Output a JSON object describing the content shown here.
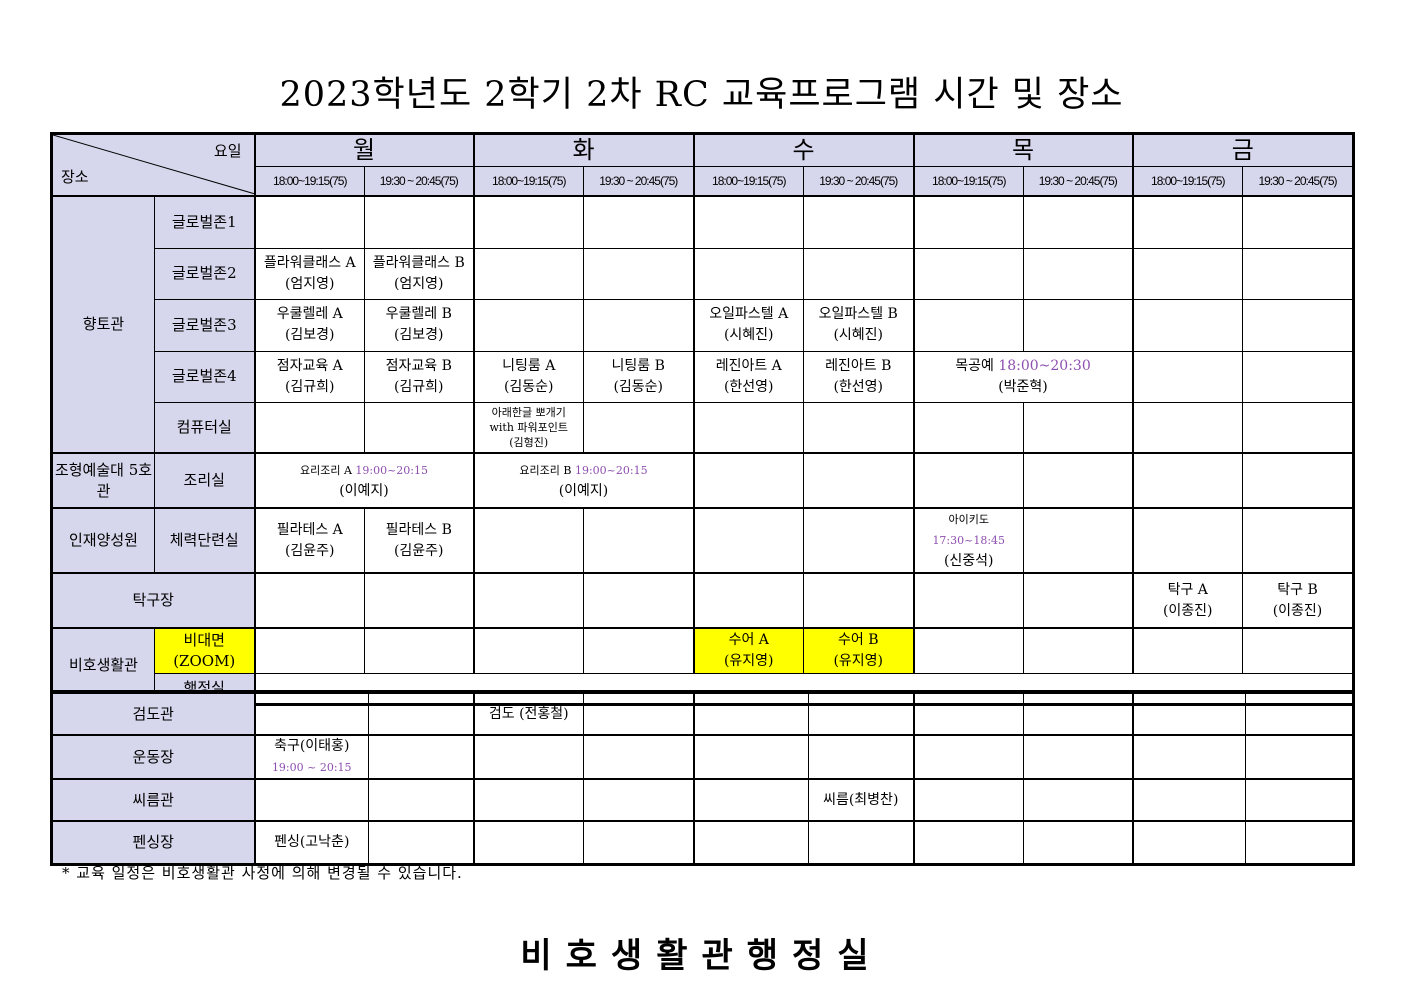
{
  "title": "2023학년도 2학기 2차 RC 교육프로그램 시간 및 장소",
  "header": {
    "day_label": "요일",
    "place_label": "장소",
    "days": [
      "월",
      "화",
      "수",
      "목",
      "금"
    ],
    "slots": [
      "18:00~19:15(75)",
      "19:30 ~ 20:45(75)"
    ]
  },
  "upper_rows": [
    {
      "group": "향토관",
      "group_rows": 5,
      "room": "글로벌존1",
      "slots": [
        null,
        null,
        null,
        null,
        null,
        null,
        null,
        null,
        null,
        null
      ]
    },
    {
      "room": "글로벌존2",
      "slots": [
        {
          "lines": [
            "플라워클래스 A",
            "(엄지영)"
          ]
        },
        {
          "lines": [
            "플라워클래스 B",
            "(엄지영)"
          ]
        },
        null,
        null,
        null,
        null,
        null,
        null,
        null,
        null
      ]
    },
    {
      "room": "글로벌존3",
      "slots": [
        {
          "lines": [
            "우쿨렐레 A",
            "(김보경)"
          ]
        },
        {
          "lines": [
            "우쿨렐레 B",
            "(김보경)"
          ]
        },
        null,
        null,
        {
          "lines": [
            "오일파스텔 A",
            "(시혜진)"
          ]
        },
        {
          "lines": [
            "오일파스텔 B",
            "(시혜진)"
          ]
        },
        null,
        null,
        null,
        null
      ]
    },
    {
      "room": "글로벌존4",
      "slots": [
        {
          "lines": [
            "점자교육 A",
            "(김규희)"
          ]
        },
        {
          "lines": [
            "점자교육 B",
            "(김규희)"
          ]
        },
        {
          "lines": [
            "니팅룸 A",
            "(김동순)"
          ]
        },
        {
          "lines": [
            "니팅룸 B",
            "(김동순)"
          ]
        },
        {
          "lines": [
            "레진아트 A",
            "(한선영)"
          ]
        },
        {
          "lines": [
            "레진아트 B",
            "(한선영)"
          ]
        },
        {
          "lines": [
            "목공예",
            "(박준혁)"
          ],
          "time": "18:00~20:30",
          "span": 2
        },
        null,
        null
      ]
    },
    {
      "room": "컴퓨터실",
      "slots": [
        null,
        null,
        {
          "lines": [
            "아래한글 뽀개기",
            "with 파워포인트",
            "(김형진)"
          ],
          "small": true
        },
        null,
        null,
        null,
        null,
        null,
        null,
        null
      ]
    },
    {
      "group": "조형예술대 5호관",
      "group_rows": 1,
      "room": "조리실",
      "thick": true,
      "slots": [
        {
          "lines": [
            "요리조리 A",
            "(이예지)"
          ],
          "time": "19:00~20:15",
          "span": 2,
          "tiny": true
        },
        {
          "lines": [
            "요리조리 B",
            "(이예지)"
          ],
          "time": "19:00~20:15",
          "span": 2,
          "tiny": true
        },
        null,
        null,
        null,
        null,
        null,
        null
      ]
    },
    {
      "group": "인재양성원",
      "group_rows": 1,
      "room": "체력단련실",
      "thick": true,
      "slots": [
        {
          "lines": [
            "필라테스 A",
            "(김윤주)"
          ]
        },
        {
          "lines": [
            "필라테스 B",
            "(김윤주)"
          ]
        },
        null,
        null,
        null,
        null,
        {
          "lines": [
            "아이키도",
            "(신중석)"
          ],
          "time": "17:30~18:45",
          "tiny": true
        },
        null,
        null,
        null
      ]
    },
    {
      "place": "탁구장",
      "thick": true,
      "slots": [
        null,
        null,
        null,
        null,
        null,
        null,
        null,
        null,
        {
          "lines": [
            "탁구 A",
            "(이종진)"
          ]
        },
        {
          "lines": [
            "탁구 B",
            "(이종진)"
          ]
        }
      ]
    },
    {
      "group": "비호생활관",
      "group_rows": 2,
      "room": "비대면 (ZOOM)",
      "room_highlight": true,
      "thick": true,
      "slots": [
        null,
        null,
        null,
        null,
        {
          "lines": [
            "수어 A",
            "(유지영)"
          ],
          "highlight": true
        },
        {
          "lines": [
            "수어 B",
            "(유지영)"
          ],
          "highlight": true
        },
        null,
        null,
        null,
        null
      ]
    },
    {
      "room": "행정실",
      "slots": [
        {
          "lines": [],
          "span": 10
        }
      ]
    }
  ],
  "lower_rows": [
    {
      "place": "검도관",
      "slots": [
        null,
        null,
        {
          "lines": [
            "검도 (전홍철)"
          ]
        },
        null,
        null,
        null,
        null,
        null,
        null,
        null
      ]
    },
    {
      "place": "운동장",
      "slots": [
        {
          "lines": [
            "축구(이태홍)"
          ],
          "time_below": "19:00 ~ 20:15"
        },
        null,
        null,
        null,
        null,
        null,
        null,
        null,
        null,
        null
      ]
    },
    {
      "place": "씨름관",
      "slots": [
        null,
        null,
        null,
        null,
        null,
        {
          "lines": [
            "씨름(최병찬)"
          ]
        },
        null,
        null,
        null,
        null
      ]
    },
    {
      "place": "펜싱장",
      "slots": [
        {
          "lines": [
            "펜싱(고낙춘)"
          ]
        },
        null,
        null,
        null,
        null,
        null,
        null,
        null,
        null,
        null
      ]
    }
  ],
  "colors": {
    "header_bg": "#d6d6ec",
    "highlight": "#ffff00",
    "time_text": "#8e4fb0"
  },
  "note": "* 교육 일정은 비호생활관 사정에 의해 변경될 수 있습니다.",
  "footer": "비호생활관행정실"
}
